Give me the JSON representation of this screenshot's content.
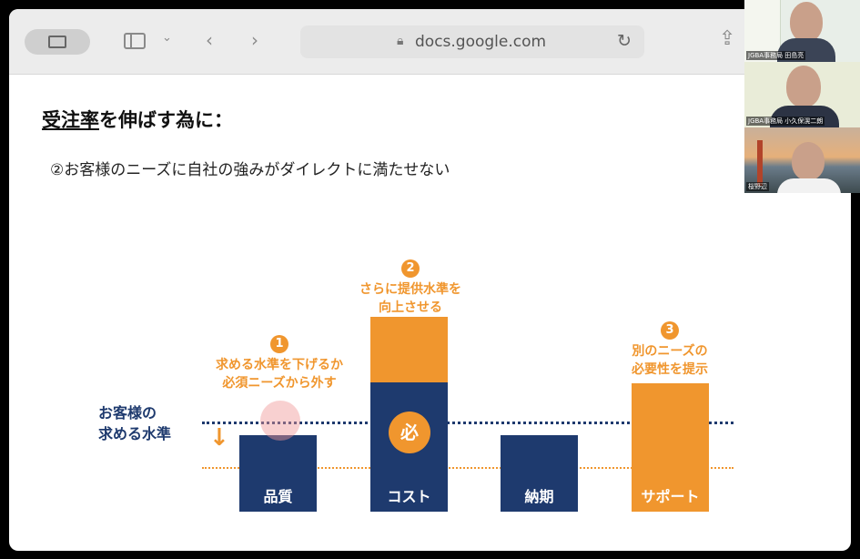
{
  "browser": {
    "url": "docs.google.com",
    "icons": [
      "sidebar-icon",
      "chevron-down-icon",
      "back-icon",
      "forward-icon",
      "lock-icon",
      "reload-icon",
      "share-icon"
    ]
  },
  "slide": {
    "title_underlined": "受注率",
    "title_rest": "を伸ばす為に：",
    "subtitle": "②お客様のニーズに自社の強みがダイレクトに満たせない",
    "customer_level_label": [
      "お客様の",
      "求める水準"
    ],
    "bars": [
      {
        "label": "品質",
        "color": "#1e3a6e"
      },
      {
        "label": "コスト",
        "color": "#1e3a6e",
        "extra_color": "#f0962e",
        "badge": "必"
      },
      {
        "label": "納期",
        "color": "#1e3a6e"
      },
      {
        "label": "サポート",
        "color": "#f0962e"
      }
    ],
    "annotations": [
      {
        "number": "1",
        "lines": [
          "求める水準を下げるか",
          "必須ニーズから外す"
        ]
      },
      {
        "number": "2",
        "lines": [
          "さらに提供水準を",
          "向上させる"
        ]
      },
      {
        "number": "3",
        "lines": [
          "別のニーズの",
          "必要性を提示"
        ]
      }
    ],
    "colors": {
      "navy": "#1e3a6e",
      "orange": "#f0962e"
    }
  },
  "participants": [
    {
      "name": "JGBA事務局 田島亮"
    },
    {
      "name": "JGBA事務局 小久保滉二朗"
    },
    {
      "name": "桜野辺"
    }
  ]
}
